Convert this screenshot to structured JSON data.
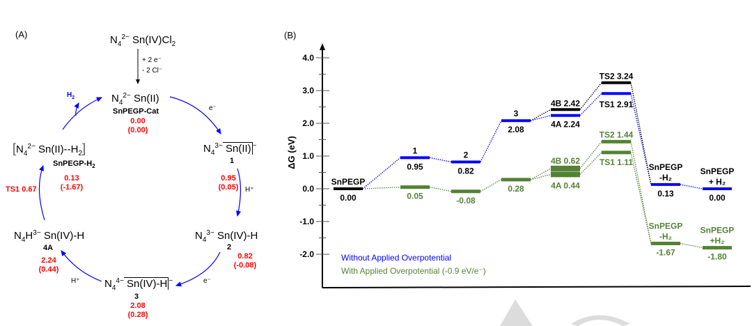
{
  "panel_a": {
    "label": "(A)",
    "start": {
      "base": "N",
      "sub1": "4",
      "sup1": "2−",
      "rest": " Sn(IV)Cl",
      "sub2": "2"
    },
    "activation": {
      "line1": "+ 2 e⁻",
      "line2": "- 2 Cl⁻"
    },
    "cat": {
      "base": "N",
      "sub1": "4",
      "sup1": "2−",
      "rest": " Sn(II)",
      "name": "SnPEGP-Cat",
      "value": "0.00",
      "value_op": "(0.00)"
    },
    "s1": {
      "base": "N",
      "sub1": "4",
      "sup1": "3−",
      "rest": " Sn(II)",
      "charge": "−",
      "name": "1",
      "value": "0.95",
      "value_op": "(0.05)"
    },
    "s2": {
      "base": "N",
      "sub1": "4",
      "sup1": "3−",
      "rest": " Sn(IV)-H",
      "name": "2",
      "value": "0.82",
      "value_op": "(-0.08)"
    },
    "s3": {
      "base": "N",
      "sub1": "4",
      "sup1": "4−",
      "rest": " Sn(IV)-H",
      "charge": "−",
      "name": "3",
      "value": "2.08",
      "value_op": "(0.28)"
    },
    "s4a": {
      "base": "N",
      "sub1": "4",
      "mid": "H",
      "sup1": "3−",
      "rest": " Sn(IV)-H",
      "name": "4A",
      "value": "2.24",
      "value_op": "(0.44)"
    },
    "sh2": {
      "open": "[",
      "base": "N",
      "sub1": "4",
      "sup1": "2−",
      "rest": " Sn(II)--H",
      "sub2": "2",
      "close": "]",
      "name": "SnPEGP-H",
      "name_sub": "2",
      "value": "0.13",
      "value_op": "(-1.67)"
    },
    "ts1": "TS1 0.67",
    "steps": {
      "e1": "e⁻",
      "h1": "H⁺",
      "e2": "e⁻",
      "h2": "H⁺",
      "h2_release": "H",
      "h2_release_sub": "2"
    }
  },
  "chart_data": {
    "type": "energy-level-diagram",
    "panel_label": "(B)",
    "ylabel": "ΔG (eV)",
    "ylim": [
      -2.5,
      4.3
    ],
    "yticks": [
      4.0,
      3.0,
      2.0,
      1.0,
      0.0,
      -1.0,
      -2.0
    ],
    "ytick_labels": [
      "4.0",
      "3.0",
      "2.0",
      "1.0",
      "0.0",
      "-1.0",
      "-2.0"
    ],
    "grid": false,
    "legend_position": "bottom-left",
    "legend": [
      {
        "text": "Without Applied  Overpotential",
        "color": "#0000ff"
      },
      {
        "text": "With Applied  Overpotential (-0.9 eV/e⁻)",
        "color": "#548235"
      }
    ],
    "states": [
      "SnPEGP",
      "1",
      "2",
      "3",
      "4A/4B",
      "TS1/TS2",
      "SnPEGP-H2",
      "SnPEGP + H2"
    ],
    "series": [
      {
        "name": "Without Applied Overpotential",
        "color": "#0000ff",
        "levels": [
          {
            "state": 0,
            "value": 0.0,
            "label_top": "SnPEGP",
            "label_bottom": "0.00",
            "color": "#000000"
          },
          {
            "state": 1,
            "value": 0.95,
            "label_top": "1",
            "label_bottom": "0.95"
          },
          {
            "state": 2,
            "value": 0.82,
            "label_top": "2",
            "label_bottom": "0.82"
          },
          {
            "state": 3,
            "value": 2.08,
            "label_top": "3",
            "label_bottom": "2.08"
          },
          {
            "state": 4,
            "value": 2.24,
            "label_bottom": "4A  2.24"
          },
          {
            "state": 5,
            "value": 2.91,
            "label_bottom": "TS1  2.91"
          },
          {
            "state": 6,
            "value": 0.13,
            "label_top": "SnPEGP\n-H₂",
            "label_bottom": "0.13"
          },
          {
            "state": 7,
            "value": 0.0,
            "label_top": "SnPEGP\n+ H₂",
            "label_bottom": "0.00"
          }
        ]
      },
      {
        "name": "Without Applied Overpotential (4B path)",
        "color": "#000000",
        "levels": [
          {
            "state": 4,
            "value": 2.42,
            "label_top": "4B  2.42"
          },
          {
            "state": 5,
            "value": 3.24,
            "label_top": "TS2  3.24"
          }
        ]
      },
      {
        "name": "With Applied Overpotential (-0.9 eV/e-)",
        "color": "#548235",
        "levels": [
          {
            "state": 1,
            "value": 0.05,
            "label_bottom": "0.05"
          },
          {
            "state": 2,
            "value": -0.08,
            "label_bottom": "-0.08"
          },
          {
            "state": 3,
            "value": 0.28,
            "label_bottom": "0.28"
          },
          {
            "state": 4,
            "value": 0.44,
            "label_bottom": "4A  0.44"
          },
          {
            "state": 4,
            "value": 0.62,
            "label_top": "4B  0.62"
          },
          {
            "state": 5,
            "value": 1.11,
            "label_bottom": "TS1  1.11"
          },
          {
            "state": 5,
            "value": 1.44,
            "label_top": "TS2  1.44"
          },
          {
            "state": 6,
            "value": -1.67,
            "label_top": "SnPEGP\n-H₂",
            "label_bottom": "-1.67"
          },
          {
            "state": 7,
            "value": -1.8,
            "label_top": "SnPEGP\n+H₂",
            "label_bottom": "-1.80"
          }
        ]
      }
    ]
  },
  "colors": {
    "blue": "#0000ff",
    "green": "#548235",
    "red": "#ff0000",
    "black": "#000000",
    "watermark": "#d9d9d9"
  }
}
